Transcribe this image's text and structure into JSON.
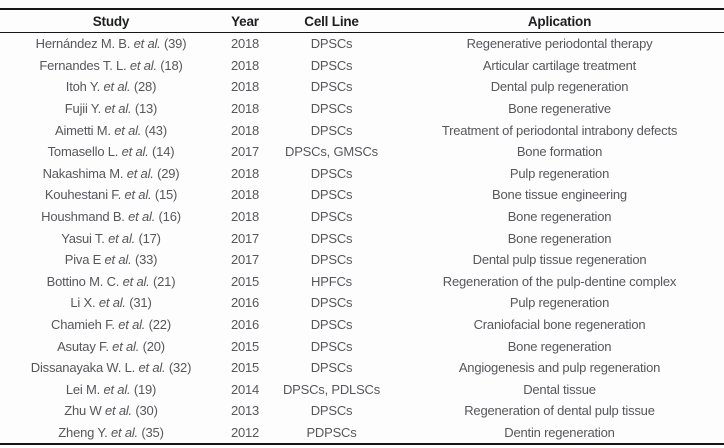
{
  "table": {
    "etal_label": "et al.",
    "columns": [
      "Study",
      "Year",
      "Cell Line",
      "Aplication"
    ],
    "rows": [
      {
        "study": "Hernández M. B.",
        "ref": "(39)",
        "year": "2018",
        "cell_line": "DPSCs",
        "application": "Regenerative periodontal therapy"
      },
      {
        "study": "Fernandes T. L.",
        "ref": "(18)",
        "year": "2018",
        "cell_line": "DPSCs",
        "application": "Articular cartilage treatment"
      },
      {
        "study": "Itoh Y.",
        "ref": "(28)",
        "year": "2018",
        "cell_line": "DPSCs",
        "application": "Dental pulp regeneration"
      },
      {
        "study": "Fujii Y.",
        "ref": "(13)",
        "year": "2018",
        "cell_line": "DPSCs",
        "application": "Bone regenerative"
      },
      {
        "study": "Aimetti M.",
        "ref": "(43)",
        "year": "2018",
        "cell_line": "DPSCs",
        "application": "Treatment of periodontal intrabony defects"
      },
      {
        "study": "Tomasello L.",
        "ref": "(14)",
        "year": "2017",
        "cell_line": "DPSCs, GMSCs",
        "application": "Bone formation"
      },
      {
        "study": "Nakashima M.",
        "ref": "(29)",
        "year": "2018",
        "cell_line": "DPSCs",
        "application": "Pulp regeneration"
      },
      {
        "study": "Kouhestani F.",
        "ref": "(15)",
        "year": "2018",
        "cell_line": "DPSCs",
        "application": "Bone tissue engineering"
      },
      {
        "study": "Houshmand B.",
        "ref": "(16)",
        "year": "2018",
        "cell_line": "DPSCs",
        "application": "Bone regeneration"
      },
      {
        "study": "Yasui T.",
        "ref": "(17)",
        "year": "2017",
        "cell_line": "DPSCs",
        "application": "Bone regeneration"
      },
      {
        "study": "Piva E",
        "ref": "(33)",
        "year": "2017",
        "cell_line": "DPSCs",
        "application": "Dental pulp tissue regeneration"
      },
      {
        "study": "Bottino M. C.",
        "ref": "(21)",
        "year": "2015",
        "cell_line": "HPFCs",
        "application": "Regeneration of the pulp-dentine complex"
      },
      {
        "study": "Li X.",
        "ref": "(31)",
        "year": "2016",
        "cell_line": "DPSCs",
        "application": "Pulp regeneration"
      },
      {
        "study": "Chamieh F.",
        "ref": "(22)",
        "year": "2016",
        "cell_line": "DPSCs",
        "application": "Craniofacial bone regeneration"
      },
      {
        "study": "Asutay F.",
        "ref": "(20)",
        "year": "2015",
        "cell_line": "DPSCs",
        "application": "Bone regeneration"
      },
      {
        "study": "Dissanayaka W. L.",
        "ref": "(32)",
        "year": "2015",
        "cell_line": "DPSCs",
        "application": "Angiogenesis and pulp regeneration"
      },
      {
        "study": "Lei M.",
        "ref": "(19)",
        "year": "2014",
        "cell_line": "DPSCs, PDLSCs",
        "application": "Dental tissue"
      },
      {
        "study": "Zhu W",
        "ref": "(30)",
        "year": "2013",
        "cell_line": "DPSCs",
        "application": "Regeneration of dental pulp tissue"
      },
      {
        "study": "Zheng Y.",
        "ref": "(35)",
        "year": "2012",
        "cell_line": "PDPSCs",
        "application": "Dentin regeneration"
      }
    ]
  }
}
